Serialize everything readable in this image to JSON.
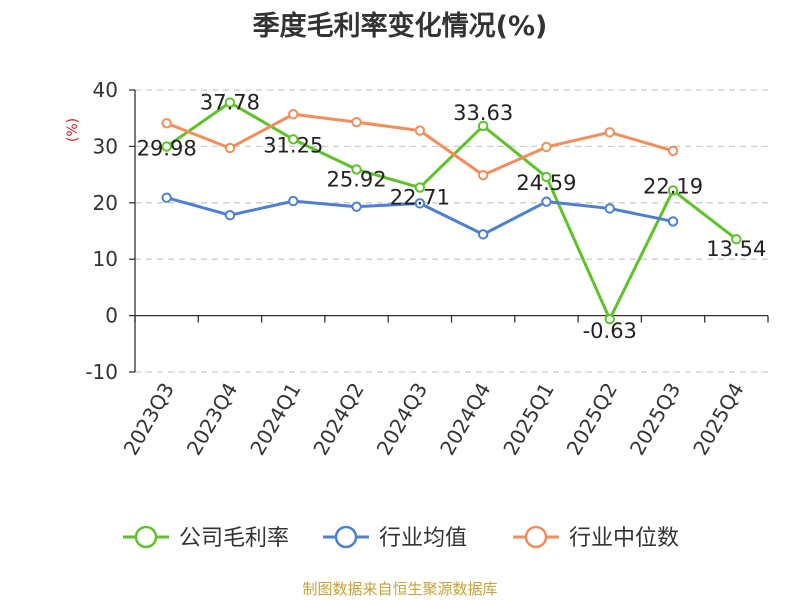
{
  "chart_data": {
    "type": "line",
    "title": "季度毛利率变化情况(%)",
    "ylabel": "(%)",
    "xlabel": "",
    "ylim": [
      -10,
      40
    ],
    "yticks": [
      40,
      30,
      20,
      10,
      0,
      -10
    ],
    "grid": true,
    "legend_position": "bottom",
    "categories": [
      "2023Q3",
      "2023Q4",
      "2024Q1",
      "2024Q2",
      "2024Q3",
      "2024Q4",
      "2025Q1",
      "2025Q2",
      "2025Q3",
      "2025Q4"
    ],
    "series": [
      {
        "name": "公司毛利率",
        "color": "#5ec32a",
        "values": [
          29.98,
          37.78,
          31.25,
          25.92,
          22.71,
          33.63,
          24.59,
          -0.63,
          22.19,
          13.54
        ],
        "labels": [
          "29.98",
          "37.78",
          "31.25",
          "25.92",
          "22.71",
          "33.63",
          "24.59",
          "-0.63",
          "22.19",
          "13.54"
        ]
      },
      {
        "name": "行业均值",
        "color": "#4e7fd6",
        "values": [
          20.9,
          17.8,
          20.3,
          19.3,
          19.9,
          14.4,
          20.2,
          19.0,
          16.7,
          null
        ]
      },
      {
        "name": "行业中位数",
        "color": "#f38d5a",
        "values": [
          34.1,
          29.7,
          35.7,
          34.3,
          32.8,
          24.9,
          29.9,
          32.5,
          29.2,
          null
        ]
      }
    ]
  },
  "source": "制图数据来自恒生聚源数据库"
}
